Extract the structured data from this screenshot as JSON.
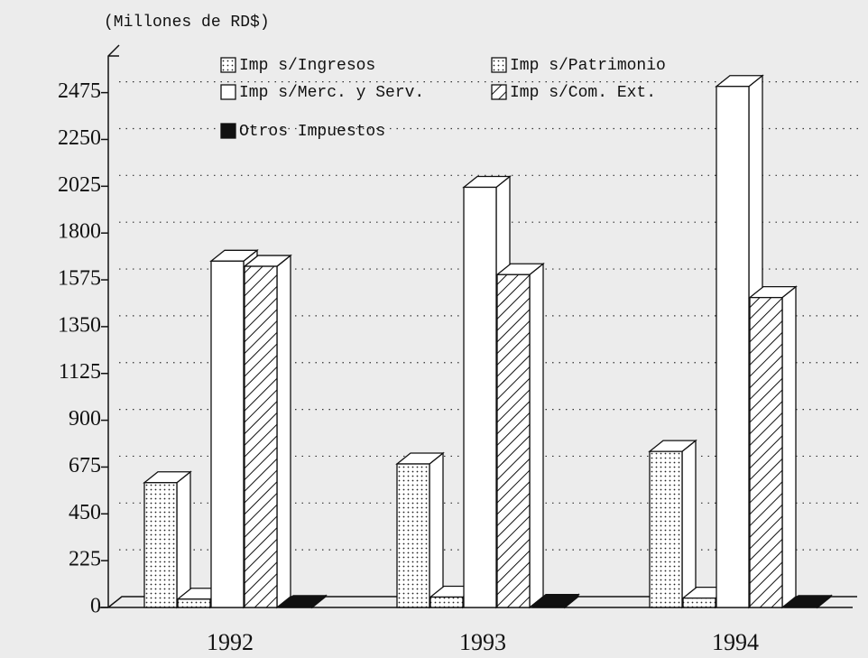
{
  "chart_data": {
    "type": "bar3d",
    "y_axis_label": "(Millones de RD$)",
    "categories": [
      "1992",
      "1993",
      "1994"
    ],
    "series": [
      {
        "name": "Imp s/Ingresos",
        "color": "#ffffff",
        "pattern": "dots",
        "values": [
          600,
          690,
          750
        ]
      },
      {
        "name": "Imp s/Patrimonio",
        "color": "#ffffff",
        "pattern": "dots",
        "values": [
          40,
          50,
          45
        ]
      },
      {
        "name": "Imp s/Merc. y Serv.",
        "color": "#ffffff",
        "pattern": "none",
        "values": [
          1665,
          2020,
          2505
        ]
      },
      {
        "name": "Imp s/Com. Ext.",
        "color": "#ffffff",
        "pattern": "hatch",
        "values": [
          1640,
          1600,
          1490
        ]
      },
      {
        "name": "Otros Impuestos",
        "color": "#111111",
        "pattern": "solid",
        "values": [
          5,
          10,
          5
        ]
      }
    ],
    "ylim": [
      0,
      2660
    ],
    "yticks": [
      0,
      225,
      450,
      675,
      900,
      1125,
      1350,
      1575,
      1800,
      2025,
      2250,
      2475
    ],
    "grid": true,
    "legend": "top"
  }
}
